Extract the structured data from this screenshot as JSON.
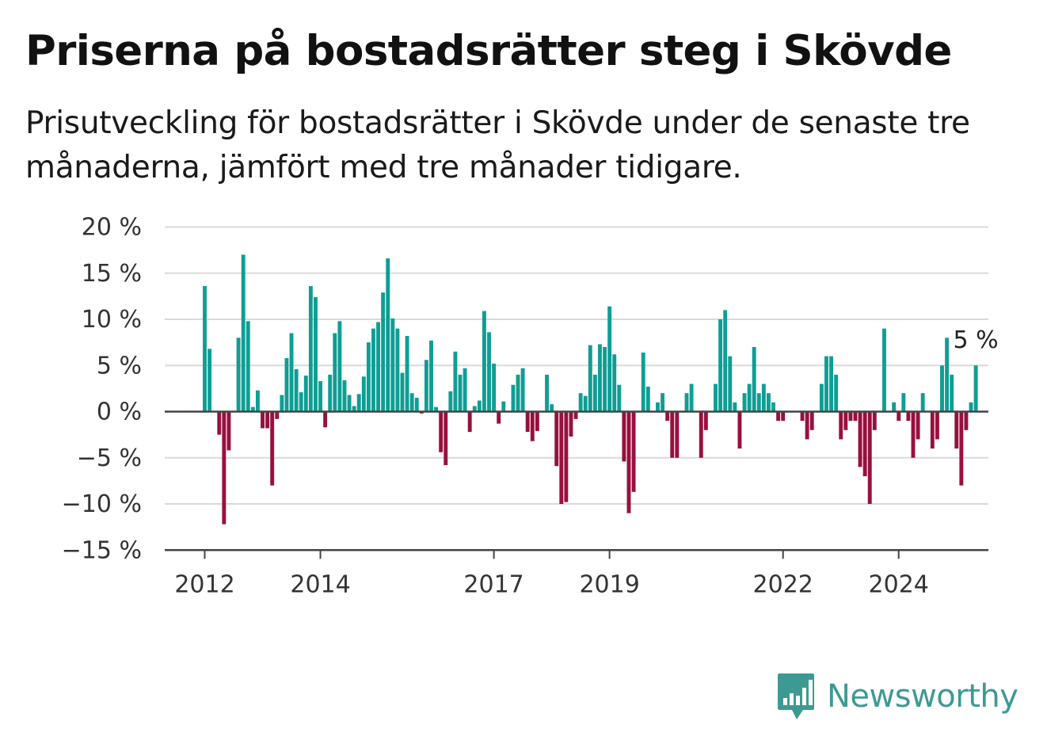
{
  "title": "Priserna på bostadsrätter steg i Skövde",
  "subtitle": "Prisutveckling för bostadsrätter i Skövde under de senaste tre månaderna, jämfört med tre månader tidigare.",
  "brand": "Newsworthy",
  "colors": {
    "positive": "#0e9e94",
    "negative": "#990f3d",
    "grid": "#d9d9d9",
    "axis": "#444444",
    "brand": "#3d9a93"
  },
  "chart_data": {
    "type": "bar",
    "title": "Priserna på bostadsrätter steg i Skövde",
    "xlabel": "",
    "ylabel": "",
    "ylim": [
      -15,
      20
    ],
    "yticks": [
      20,
      15,
      10,
      5,
      0,
      -5,
      -10,
      -15
    ],
    "ytick_labels": [
      "20 %",
      "15 %",
      "10 %",
      "5 %",
      "0 %",
      "−5 %",
      "−10 %",
      "−15 %"
    ],
    "x_ticks": [
      {
        "label": "2012",
        "index": 0
      },
      {
        "label": "2014",
        "index": 24
      },
      {
        "label": "2017",
        "index": 60
      },
      {
        "label": "2019",
        "index": 84
      },
      {
        "label": "2022",
        "index": 120
      },
      {
        "label": "2024",
        "index": 144
      }
    ],
    "grid": true,
    "period": "monthly, January 2012 – October 2024",
    "values": [
      13.6,
      6.8,
      0,
      -2.5,
      -12.2,
      -4.2,
      0,
      8.0,
      17.0,
      9.8,
      0.5,
      2.3,
      -1.8,
      -1.8,
      -8.0,
      -0.8,
      1.8,
      5.8,
      8.5,
      4.6,
      2.1,
      3.9,
      13.6,
      12.4,
      3.3,
      -1.7,
      4.0,
      8.5,
      9.8,
      3.4,
      1.8,
      0.6,
      1.9,
      3.8,
      7.5,
      9.0,
      9.7,
      12.9,
      16.6,
      10.1,
      9.0,
      4.2,
      8.2,
      2.0,
      1.5,
      -0.2,
      5.6,
      7.7,
      0.5,
      -4.4,
      -5.8,
      2.2,
      6.5,
      4.0,
      4.7,
      -2.2,
      0.6,
      1.2,
      10.9,
      8.6,
      5.2,
      -1.3,
      1.1,
      0,
      2.9,
      4.0,
      4.7,
      -2.2,
      -3.2,
      -2.1,
      0,
      4.0,
      0.8,
      -5.9,
      -10.0,
      -9.8,
      -2.7,
      -0.8,
      2.0,
      1.7,
      7.2,
      4.0,
      7.3,
      7.0,
      11.4,
      6.2,
      2.9,
      -5.4,
      -11.0,
      -8.7,
      0,
      6.4,
      2.7,
      0,
      1.0,
      2.0,
      -1.0,
      -5.0,
      -5.0,
      0,
      2.0,
      3.0,
      0,
      -5.0,
      -2.0,
      0,
      3.0,
      10.0,
      11.0,
      6.0,
      1.0,
      -4.0,
      2.0,
      3.0,
      7.0,
      2.0,
      3.0,
      2.0,
      1.0,
      -1.0,
      -1.0,
      0,
      0,
      0,
      -1.0,
      -3.0,
      -2.0,
      0,
      3.0,
      6.0,
      6.0,
      4.0,
      -3.0,
      -2.0,
      -1.0,
      -1.0,
      -6.0,
      -7.0,
      -10.0,
      -2.0,
      0,
      9.0,
      0,
      1.0,
      -1.0,
      2.0,
      -1.0,
      -5.0,
      -3.0,
      2.0,
      0,
      -4.0,
      -3.0,
      5.0,
      8.0,
      4.0,
      -4.0,
      -8.0,
      -2.0,
      1.0,
      5.0
    ],
    "last_value_label": "5 %"
  }
}
